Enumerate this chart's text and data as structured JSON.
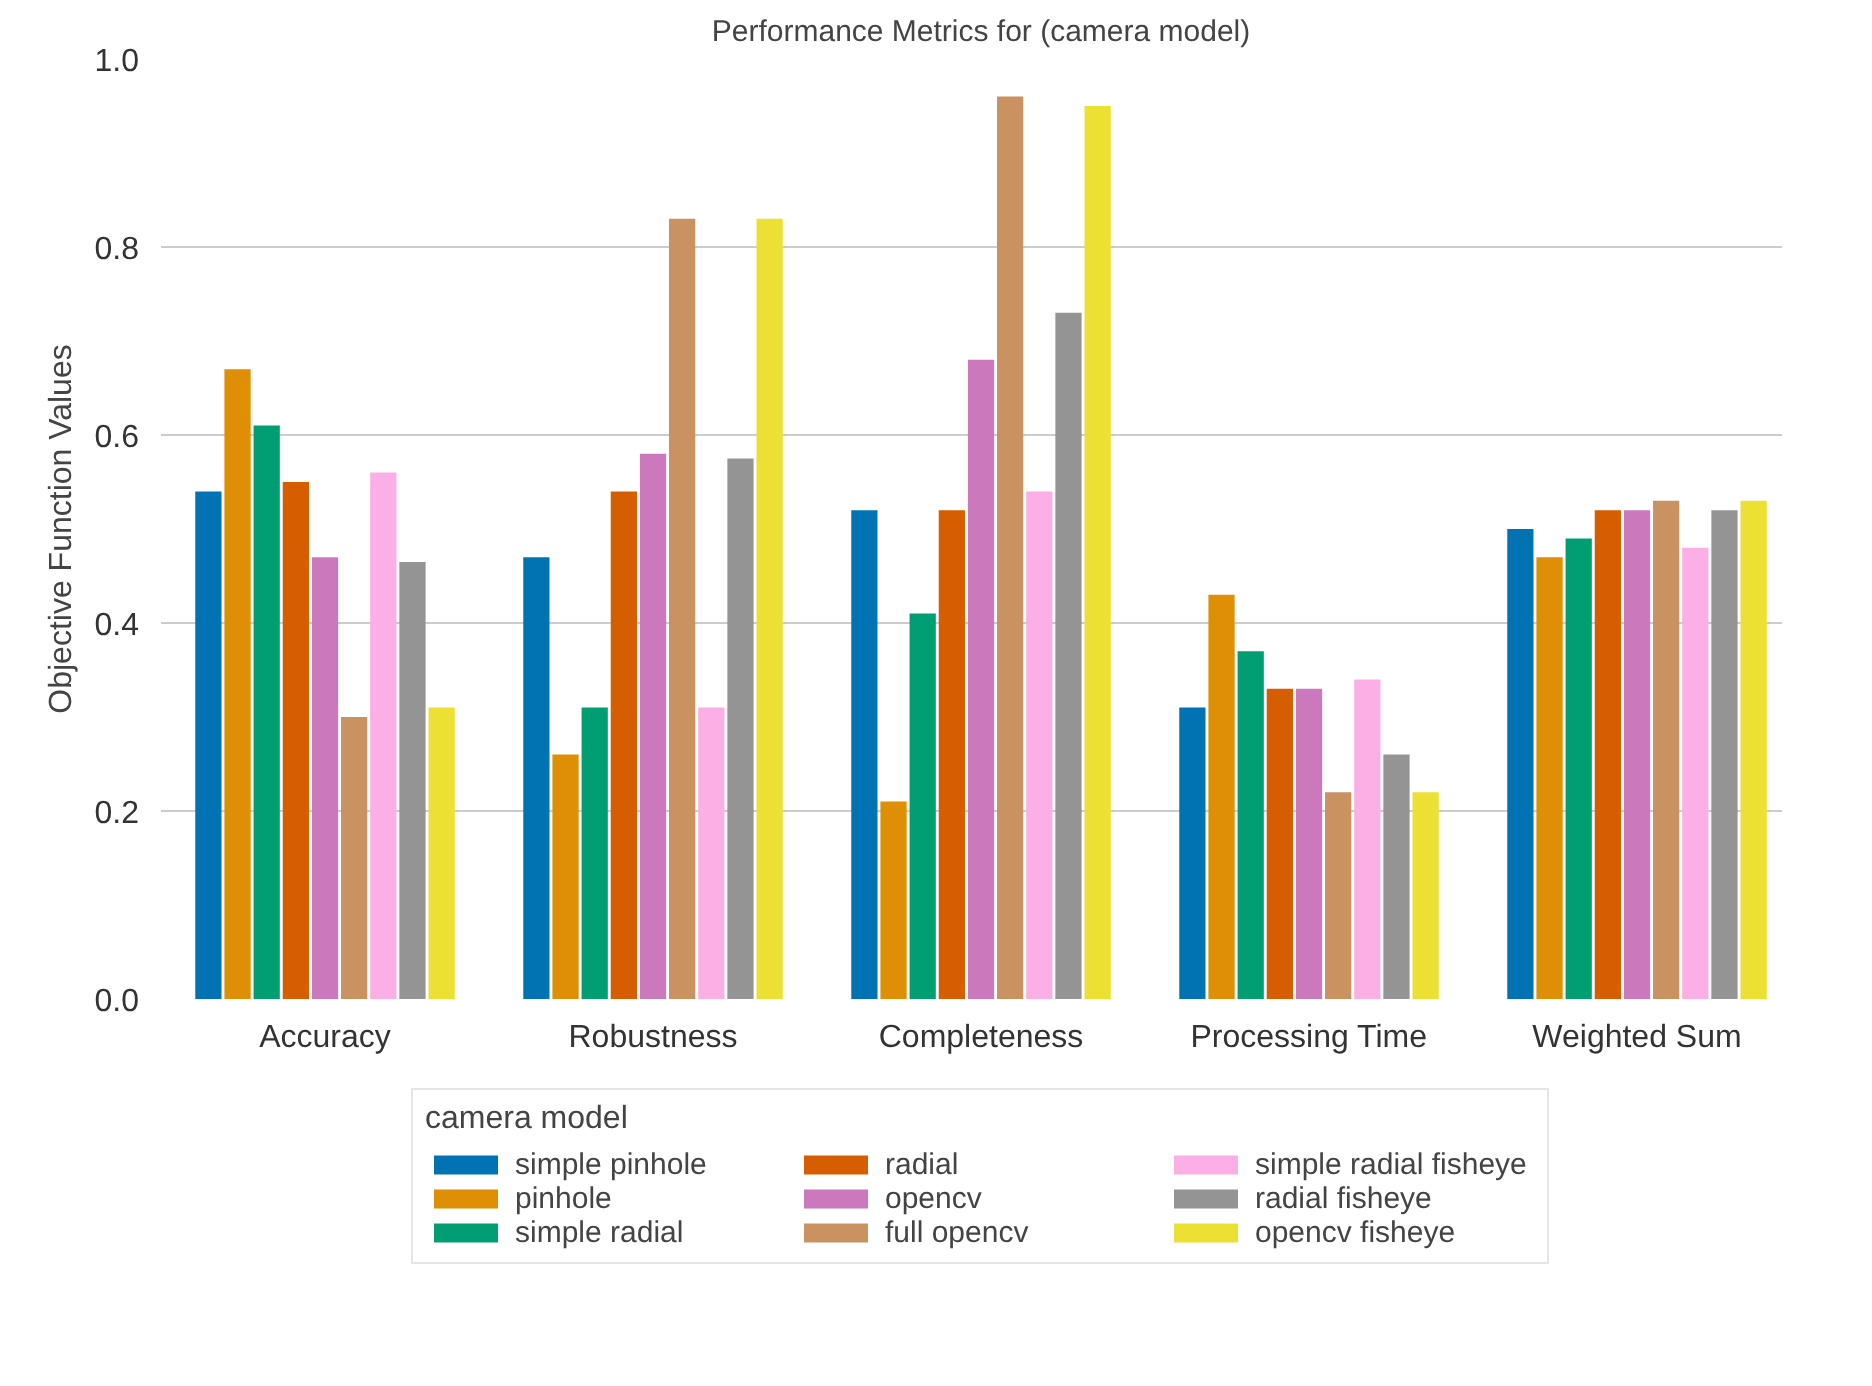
{
  "chart_data": {
    "type": "bar",
    "title": "Performance Metrics for (camera model)",
    "ylabel": "Objective Function Values",
    "legend_title": "camera model",
    "categories": [
      "Accuracy",
      "Robustness",
      "Completeness",
      "Processing Time",
      "Weighted Sum"
    ],
    "series": [
      {
        "name": "simple pinhole",
        "color": "#0173b2",
        "values": [
          0.54,
          0.47,
          0.52,
          0.31,
          0.5
        ]
      },
      {
        "name": "pinhole",
        "color": "#de8f05",
        "values": [
          0.67,
          0.26,
          0.21,
          0.43,
          0.47
        ]
      },
      {
        "name": "simple radial",
        "color": "#029e73",
        "values": [
          0.61,
          0.31,
          0.41,
          0.37,
          0.49
        ]
      },
      {
        "name": "radial",
        "color": "#d55e00",
        "values": [
          0.55,
          0.54,
          0.52,
          0.33,
          0.52
        ]
      },
      {
        "name": "opencv",
        "color": "#cc78bc",
        "values": [
          0.47,
          0.58,
          0.68,
          0.33,
          0.52
        ]
      },
      {
        "name": "full opencv",
        "color": "#ca9161",
        "values": [
          0.3,
          0.83,
          0.96,
          0.22,
          0.53
        ]
      },
      {
        "name": "simple radial fisheye",
        "color": "#fbafe4",
        "values": [
          0.56,
          0.31,
          0.54,
          0.34,
          0.48
        ]
      },
      {
        "name": "radial fisheye",
        "color": "#949494",
        "values": [
          0.465,
          0.575,
          0.73,
          0.26,
          0.52
        ]
      },
      {
        "name": "opencv fisheye",
        "color": "#ece133",
        "values": [
          0.31,
          0.83,
          0.95,
          0.22,
          0.53
        ]
      }
    ],
    "ylim": [
      0,
      1.0
    ],
    "yticks": [
      {
        "value": 0,
        "label": "0.0"
      },
      {
        "value": 0.2,
        "label": "0.2"
      },
      {
        "value": 0.4,
        "label": "0.4"
      },
      {
        "value": 0.6,
        "label": "0.6"
      },
      {
        "value": 0.8,
        "label": "0.8"
      },
      {
        "value": 1.0,
        "label": "1.0"
      }
    ],
    "grid": "y",
    "legend": "bottom"
  }
}
